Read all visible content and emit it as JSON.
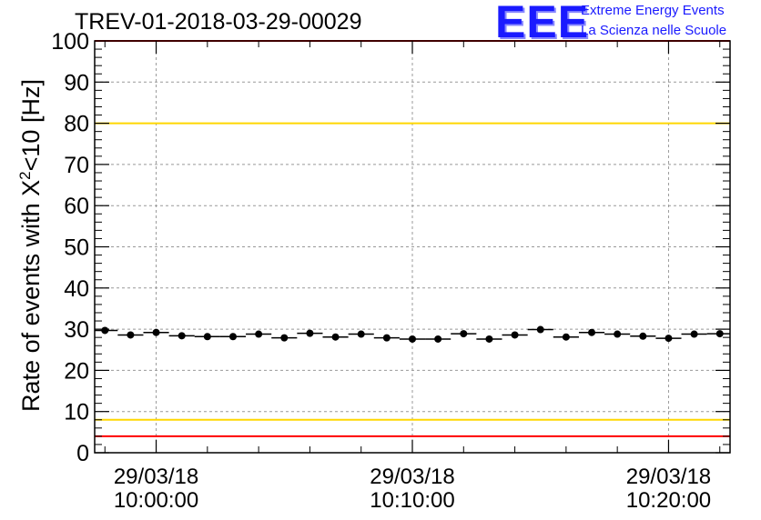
{
  "header": {
    "title": "TREV-01-2018-03-29-00029",
    "logo_mark": "EEE",
    "logo_line1": "Extreme Energy Events",
    "logo_line2": "La Scienza nelle Scuole"
  },
  "chart_data": {
    "type": "scatter",
    "title": "TREV-01-2018-03-29-00029",
    "ylabel_prefix": "Rate of events with X",
    "ylabel_sup": "2",
    "ylabel_suffix": "<10 [Hz]",
    "ylim": [
      0,
      100
    ],
    "yticks": [
      0,
      10,
      20,
      30,
      40,
      50,
      60,
      70,
      80,
      90,
      100
    ],
    "xlim_minutes": [
      -2.4,
      22.4
    ],
    "xticks": [
      {
        "minute": 0,
        "date": "29/03/18",
        "time": "10:00:00"
      },
      {
        "minute": 10,
        "date": "29/03/18",
        "time": "10:10:00"
      },
      {
        "minute": 20,
        "date": "29/03/18",
        "time": "10:20:00"
      }
    ],
    "grid": true,
    "bin_width_minutes": 1,
    "points_minute": [
      -2,
      -1,
      0,
      1,
      2,
      3,
      4,
      5,
      6,
      7,
      8,
      9,
      10,
      11,
      12,
      13,
      14,
      15,
      16,
      17,
      18,
      19,
      20,
      21,
      22
    ],
    "points_rate": [
      29.7,
      28.6,
      29.2,
      28.4,
      28.2,
      28.2,
      28.8,
      27.9,
      29.0,
      28.1,
      28.8,
      27.9,
      27.6,
      27.6,
      28.9,
      27.6,
      28.6,
      29.9,
      28.1,
      29.2,
      28.8,
      28.3,
      27.8,
      28.8,
      28.9
    ],
    "reference_lines": [
      {
        "value": 100,
        "color": "#ff0000"
      },
      {
        "value": 80,
        "color": "#ffd700"
      },
      {
        "value": 8,
        "color": "#ffd700"
      },
      {
        "value": 4,
        "color": "#ff0000"
      }
    ],
    "marker_color": "#000000"
  }
}
